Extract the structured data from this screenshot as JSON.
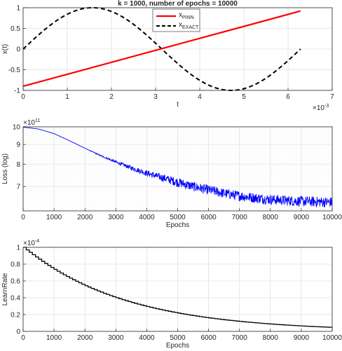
{
  "chart_data": [
    {
      "type": "line",
      "title": "k = 1000,  number of epochs = 10000",
      "xlabel": "t",
      "ylabel": "x(t)",
      "x_exponent_label": "×10",
      "x_exponent": "-3",
      "xlim": [
        0,
        7
      ],
      "ylim": [
        -1,
        1
      ],
      "xticks": [
        0,
        1,
        2,
        3,
        4,
        5,
        6,
        7
      ],
      "yticks": [
        -1,
        -0.5,
        0,
        0.5,
        1
      ],
      "ytick_labels": [
        "-1",
        "-0.5",
        "0",
        "0.5",
        "1"
      ],
      "grid": true,
      "legend_position": "top-center",
      "series": [
        {
          "name": "x",
          "name_sub": "PINN",
          "style": "solid",
          "color": "#ff0000",
          "x": [
            0,
            6.2832
          ],
          "y": [
            -0.9,
            0.92
          ]
        },
        {
          "name": "x",
          "name_sub": "EXACT",
          "style": "dashed",
          "color": "#000000",
          "function": "sin(1000 t)",
          "x_range": [
            0,
            6.2832
          ]
        }
      ]
    },
    {
      "type": "line",
      "xlabel": "Epochs",
      "ylabel": "Loss (log)",
      "y_exponent_label": "×10",
      "y_exponent": "11",
      "xlim": [
        0,
        10000
      ],
      "ylim": [
        6.05,
        10
      ],
      "log_scale_y": true,
      "xticks": [
        0,
        1000,
        2000,
        3000,
        4000,
        5000,
        6000,
        7000,
        8000,
        9000,
        10000
      ],
      "yticks": [
        7,
        8,
        9,
        10
      ],
      "grid": true,
      "series": [
        {
          "color": "#0000ff",
          "x": [
            0,
            500,
            1000,
            1500,
            2000,
            2500,
            3000,
            3500,
            4000,
            4500,
            5000,
            5500,
            6000,
            6500,
            7000,
            7500,
            8000,
            8500,
            9000,
            9500,
            10000
          ],
          "y": [
            9.98,
            9.87,
            9.6,
            9.2,
            8.8,
            8.42,
            8.1,
            7.82,
            7.58,
            7.38,
            7.18,
            7.0,
            6.86,
            6.72,
            6.62,
            6.54,
            6.48,
            6.44,
            6.41,
            6.39,
            6.37
          ]
        }
      ]
    },
    {
      "type": "line",
      "xlabel": "Epochs",
      "ylabel": "LearnRate",
      "y_exponent_label": "×10",
      "y_exponent": "-4",
      "xlim": [
        0,
        10000
      ],
      "ylim": [
        0,
        1
      ],
      "xticks": [
        0,
        1000,
        2000,
        3000,
        4000,
        5000,
        6000,
        7000,
        8000,
        9000,
        10000
      ],
      "yticks": [
        0,
        0.2,
        0.4,
        0.6,
        0.8,
        1
      ],
      "grid": true,
      "series": [
        {
          "color": "#000000",
          "style": "step",
          "drop_every": 100,
          "factor": 0.97,
          "start": 1.0
        }
      ]
    }
  ]
}
